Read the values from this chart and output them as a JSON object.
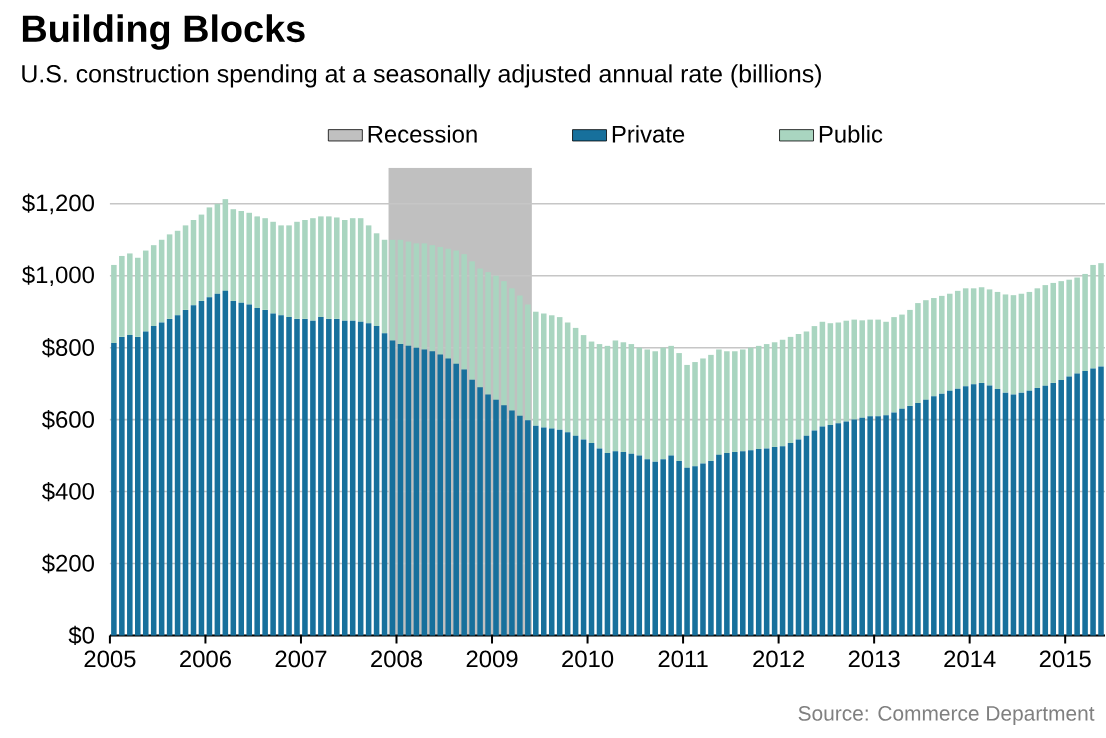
{
  "chart_data": {
    "type": "bar",
    "stacked": true,
    "title": "Building Blocks",
    "subtitle": "U.S. construction spending at a seasonally adjusted annual rate (billions)",
    "annotations": [
      "Source: Commerce Department"
    ],
    "x": [
      "2005-01",
      "2005-02",
      "2005-03",
      "2005-04",
      "2005-05",
      "2005-06",
      "2005-07",
      "2005-08",
      "2005-09",
      "2005-10",
      "2005-11",
      "2005-12",
      "2006-01",
      "2006-02",
      "2006-03",
      "2006-04",
      "2006-05",
      "2006-06",
      "2006-07",
      "2006-08",
      "2006-09",
      "2006-10",
      "2006-11",
      "2006-12",
      "2007-01",
      "2007-02",
      "2007-03",
      "2007-04",
      "2007-05",
      "2007-06",
      "2007-07",
      "2007-08",
      "2007-09",
      "2007-10",
      "2007-11",
      "2007-12",
      "2008-01",
      "2008-02",
      "2008-03",
      "2008-04",
      "2008-05",
      "2008-06",
      "2008-07",
      "2008-08",
      "2008-09",
      "2008-10",
      "2008-11",
      "2008-12",
      "2009-01",
      "2009-02",
      "2009-03",
      "2009-04",
      "2009-05",
      "2009-06",
      "2009-07",
      "2009-08",
      "2009-09",
      "2009-10",
      "2009-11",
      "2009-12",
      "2010-01",
      "2010-02",
      "2010-03",
      "2010-04",
      "2010-05",
      "2010-06",
      "2010-07",
      "2010-08",
      "2010-09",
      "2010-10",
      "2010-11",
      "2010-12",
      "2011-01",
      "2011-02",
      "2011-03",
      "2011-04",
      "2011-05",
      "2011-06",
      "2011-07",
      "2011-08",
      "2011-09",
      "2011-10",
      "2011-11",
      "2011-12",
      "2012-01",
      "2012-02",
      "2012-03",
      "2012-04",
      "2012-05",
      "2012-06",
      "2012-07",
      "2012-08",
      "2012-09",
      "2012-10",
      "2012-11",
      "2012-12",
      "2013-01",
      "2013-02",
      "2013-03",
      "2013-04",
      "2013-05",
      "2013-06",
      "2013-07",
      "2013-08",
      "2013-09",
      "2013-10",
      "2013-11",
      "2013-12",
      "2014-01",
      "2014-02",
      "2014-03",
      "2014-04",
      "2014-05",
      "2014-06",
      "2014-07",
      "2014-08",
      "2014-09",
      "2014-10",
      "2014-11",
      "2014-12",
      "2015-01",
      "2015-02",
      "2015-03",
      "2015-04",
      "2015-05"
    ],
    "series": [
      {
        "name": "Private",
        "color": "#17709c",
        "values": [
          813,
          830,
          835,
          830,
          845,
          860,
          870,
          880,
          890,
          905,
          918,
          930,
          940,
          950,
          958,
          930,
          925,
          920,
          910,
          905,
          895,
          890,
          885,
          880,
          880,
          875,
          885,
          880,
          880,
          875,
          875,
          872,
          868,
          860,
          840,
          820,
          810,
          805,
          800,
          795,
          790,
          781,
          770,
          755,
          739,
          711,
          690,
          670,
          655,
          640,
          625,
          611,
          598,
          583,
          578,
          575,
          572,
          565,
          555,
          545,
          535,
          520,
          507,
          512,
          510,
          505,
          500,
          490,
          483,
          490,
          500,
          485,
          466,
          470,
          478,
          485,
          502,
          507,
          510,
          512,
          515,
          518,
          520,
          524,
          526,
          535,
          545,
          555,
          570,
          581,
          585,
          590,
          595,
          600,
          605,
          609,
          609,
          612,
          620,
          630,
          638,
          646,
          655,
          665,
          672,
          680,
          686,
          693,
          698,
          702,
          695,
          685,
          675,
          670,
          675,
          680,
          688,
          694,
          702,
          710,
          720,
          728,
          735,
          742,
          748
        ]
      },
      {
        "name": "Public",
        "color": "#a9d5c0",
        "values": [
          217,
          225,
          227,
          220,
          225,
          225,
          230,
          235,
          235,
          235,
          237,
          240,
          250,
          250,
          255,
          255,
          255,
          255,
          255,
          255,
          255,
          250,
          255,
          270,
          275,
          285,
          280,
          285,
          282,
          280,
          285,
          288,
          272,
          258,
          260,
          280,
          290,
          290,
          290,
          295,
          295,
          299,
          305,
          315,
          321,
          329,
          330,
          340,
          345,
          345,
          340,
          334,
          322,
          317,
          317,
          315,
          313,
          305,
          300,
          290,
          282,
          290,
          298,
          308,
          305,
          305,
          300,
          305,
          307,
          310,
          305,
          300,
          286,
          290,
          292,
          295,
          293,
          283,
          280,
          283,
          285,
          287,
          290,
          291,
          296,
          295,
          293,
          290,
          290,
          291,
          283,
          280,
          280,
          278,
          271,
          269,
          269,
          260,
          265,
          262,
          267,
          278,
          277,
          273,
          272,
          270,
          272,
          272,
          267,
          266,
          267,
          270,
          273,
          276,
          275,
          275,
          277,
          280,
          278,
          275,
          269,
          267,
          270,
          288,
          287
        ]
      }
    ],
    "bands": [
      {
        "axis": "x",
        "from": "2007-12",
        "to": "2009-06",
        "label": "Recession",
        "color": "#c0c0c0"
      }
    ],
    "xlim": [
      "2005-01",
      "2015-06"
    ],
    "xticks": [
      "2005",
      "2006",
      "2007",
      "2008",
      "2009",
      "2010",
      "2011",
      "2012",
      "2013",
      "2014",
      "2015"
    ],
    "ylim": [
      0,
      1300
    ],
    "yticks": [
      {
        "value": 0,
        "label": "$0"
      },
      {
        "value": 200,
        "label": "$200"
      },
      {
        "value": 400,
        "label": "$400"
      },
      {
        "value": 600,
        "label": "$600"
      },
      {
        "value": 800,
        "label": "$800"
      },
      {
        "value": 1000,
        "label": "$1,000"
      },
      {
        "value": 1200,
        "label": "$1,200"
      }
    ],
    "grid": "y",
    "legend": "top"
  }
}
